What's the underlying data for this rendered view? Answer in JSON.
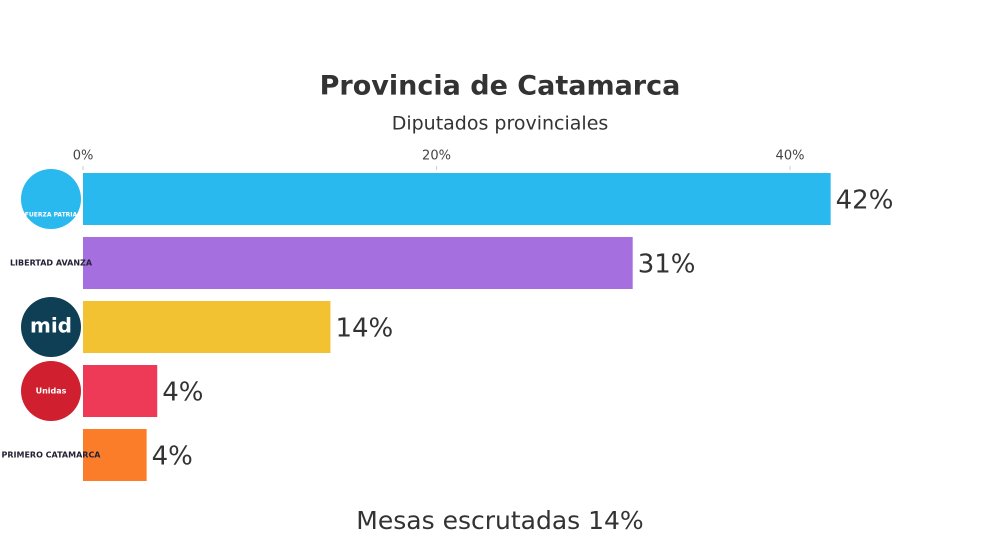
{
  "chart_data": {
    "type": "hbar",
    "title": "Provincia de Catamarca",
    "subtitle": "Diputados provinciales",
    "categories": [
      "FUERZA PATRIA",
      "LIBERTAD AVANZA",
      "mid",
      "Unidas",
      "PRIMERO CATAMARCA"
    ],
    "values": [
      42.3,
      31.1,
      14,
      4.2,
      3.6
    ],
    "value_labels": [
      "42%",
      "31%",
      "14%",
      "4%",
      "4%"
    ],
    "colors": [
      "#29b9ef",
      "#a56fdf",
      "#f2c232",
      "#ee3a57",
      "#fb7d29"
    ],
    "xlim": [
      0,
      50
    ],
    "xticks": [
      {
        "value": 0,
        "label": "0%"
      },
      {
        "value": 20,
        "label": "20%"
      },
      {
        "value": 40,
        "label": "40%"
      }
    ],
    "annotation": "Mesas escrutadas 14%"
  }
}
